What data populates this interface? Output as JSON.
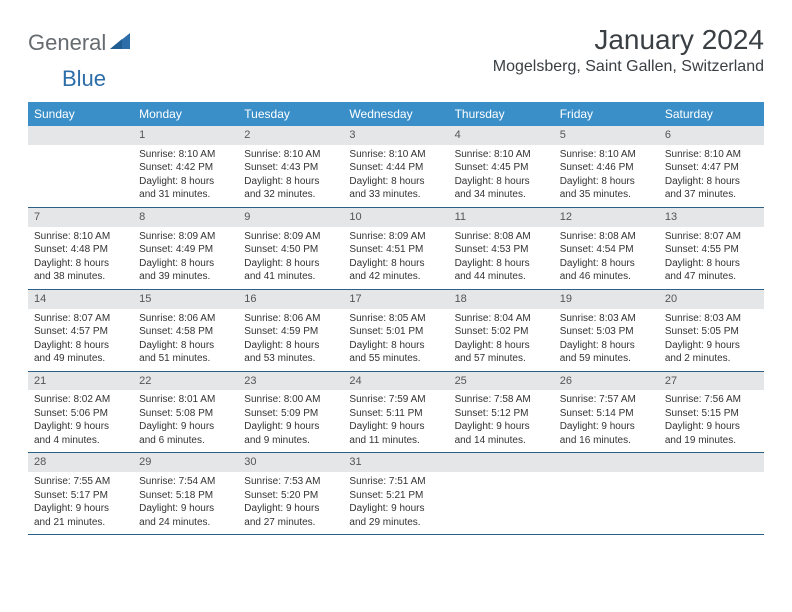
{
  "brand": {
    "general": "General",
    "blue": "Blue"
  },
  "title": "January 2024",
  "location": "Mogelsberg, Saint Gallen, Switzerland",
  "colors": {
    "header_bg": "#3b8fc8",
    "header_text": "#ffffff",
    "daynum_bg": "#e4e6e8",
    "border": "#2b5f86",
    "brand_gray": "#666b70",
    "brand_blue": "#2d6ea9"
  },
  "day_labels": [
    "Sunday",
    "Monday",
    "Tuesday",
    "Wednesday",
    "Thursday",
    "Friday",
    "Saturday"
  ],
  "weeks": [
    [
      null,
      {
        "n": "1",
        "sr": "Sunrise: 8:10 AM",
        "ss": "Sunset: 4:42 PM",
        "dl": "Daylight: 8 hours and 31 minutes."
      },
      {
        "n": "2",
        "sr": "Sunrise: 8:10 AM",
        "ss": "Sunset: 4:43 PM",
        "dl": "Daylight: 8 hours and 32 minutes."
      },
      {
        "n": "3",
        "sr": "Sunrise: 8:10 AM",
        "ss": "Sunset: 4:44 PM",
        "dl": "Daylight: 8 hours and 33 minutes."
      },
      {
        "n": "4",
        "sr": "Sunrise: 8:10 AM",
        "ss": "Sunset: 4:45 PM",
        "dl": "Daylight: 8 hours and 34 minutes."
      },
      {
        "n": "5",
        "sr": "Sunrise: 8:10 AM",
        "ss": "Sunset: 4:46 PM",
        "dl": "Daylight: 8 hours and 35 minutes."
      },
      {
        "n": "6",
        "sr": "Sunrise: 8:10 AM",
        "ss": "Sunset: 4:47 PM",
        "dl": "Daylight: 8 hours and 37 minutes."
      }
    ],
    [
      {
        "n": "7",
        "sr": "Sunrise: 8:10 AM",
        "ss": "Sunset: 4:48 PM",
        "dl": "Daylight: 8 hours and 38 minutes."
      },
      {
        "n": "8",
        "sr": "Sunrise: 8:09 AM",
        "ss": "Sunset: 4:49 PM",
        "dl": "Daylight: 8 hours and 39 minutes."
      },
      {
        "n": "9",
        "sr": "Sunrise: 8:09 AM",
        "ss": "Sunset: 4:50 PM",
        "dl": "Daylight: 8 hours and 41 minutes."
      },
      {
        "n": "10",
        "sr": "Sunrise: 8:09 AM",
        "ss": "Sunset: 4:51 PM",
        "dl": "Daylight: 8 hours and 42 minutes."
      },
      {
        "n": "11",
        "sr": "Sunrise: 8:08 AM",
        "ss": "Sunset: 4:53 PM",
        "dl": "Daylight: 8 hours and 44 minutes."
      },
      {
        "n": "12",
        "sr": "Sunrise: 8:08 AM",
        "ss": "Sunset: 4:54 PM",
        "dl": "Daylight: 8 hours and 46 minutes."
      },
      {
        "n": "13",
        "sr": "Sunrise: 8:07 AM",
        "ss": "Sunset: 4:55 PM",
        "dl": "Daylight: 8 hours and 47 minutes."
      }
    ],
    [
      {
        "n": "14",
        "sr": "Sunrise: 8:07 AM",
        "ss": "Sunset: 4:57 PM",
        "dl": "Daylight: 8 hours and 49 minutes."
      },
      {
        "n": "15",
        "sr": "Sunrise: 8:06 AM",
        "ss": "Sunset: 4:58 PM",
        "dl": "Daylight: 8 hours and 51 minutes."
      },
      {
        "n": "16",
        "sr": "Sunrise: 8:06 AM",
        "ss": "Sunset: 4:59 PM",
        "dl": "Daylight: 8 hours and 53 minutes."
      },
      {
        "n": "17",
        "sr": "Sunrise: 8:05 AM",
        "ss": "Sunset: 5:01 PM",
        "dl": "Daylight: 8 hours and 55 minutes."
      },
      {
        "n": "18",
        "sr": "Sunrise: 8:04 AM",
        "ss": "Sunset: 5:02 PM",
        "dl": "Daylight: 8 hours and 57 minutes."
      },
      {
        "n": "19",
        "sr": "Sunrise: 8:03 AM",
        "ss": "Sunset: 5:03 PM",
        "dl": "Daylight: 8 hours and 59 minutes."
      },
      {
        "n": "20",
        "sr": "Sunrise: 8:03 AM",
        "ss": "Sunset: 5:05 PM",
        "dl": "Daylight: 9 hours and 2 minutes."
      }
    ],
    [
      {
        "n": "21",
        "sr": "Sunrise: 8:02 AM",
        "ss": "Sunset: 5:06 PM",
        "dl": "Daylight: 9 hours and 4 minutes."
      },
      {
        "n": "22",
        "sr": "Sunrise: 8:01 AM",
        "ss": "Sunset: 5:08 PM",
        "dl": "Daylight: 9 hours and 6 minutes."
      },
      {
        "n": "23",
        "sr": "Sunrise: 8:00 AM",
        "ss": "Sunset: 5:09 PM",
        "dl": "Daylight: 9 hours and 9 minutes."
      },
      {
        "n": "24",
        "sr": "Sunrise: 7:59 AM",
        "ss": "Sunset: 5:11 PM",
        "dl": "Daylight: 9 hours and 11 minutes."
      },
      {
        "n": "25",
        "sr": "Sunrise: 7:58 AM",
        "ss": "Sunset: 5:12 PM",
        "dl": "Daylight: 9 hours and 14 minutes."
      },
      {
        "n": "26",
        "sr": "Sunrise: 7:57 AM",
        "ss": "Sunset: 5:14 PM",
        "dl": "Daylight: 9 hours and 16 minutes."
      },
      {
        "n": "27",
        "sr": "Sunrise: 7:56 AM",
        "ss": "Sunset: 5:15 PM",
        "dl": "Daylight: 9 hours and 19 minutes."
      }
    ],
    [
      {
        "n": "28",
        "sr": "Sunrise: 7:55 AM",
        "ss": "Sunset: 5:17 PM",
        "dl": "Daylight: 9 hours and 21 minutes."
      },
      {
        "n": "29",
        "sr": "Sunrise: 7:54 AM",
        "ss": "Sunset: 5:18 PM",
        "dl": "Daylight: 9 hours and 24 minutes."
      },
      {
        "n": "30",
        "sr": "Sunrise: 7:53 AM",
        "ss": "Sunset: 5:20 PM",
        "dl": "Daylight: 9 hours and 27 minutes."
      },
      {
        "n": "31",
        "sr": "Sunrise: 7:51 AM",
        "ss": "Sunset: 5:21 PM",
        "dl": "Daylight: 9 hours and 29 minutes."
      },
      null,
      null,
      null
    ]
  ]
}
